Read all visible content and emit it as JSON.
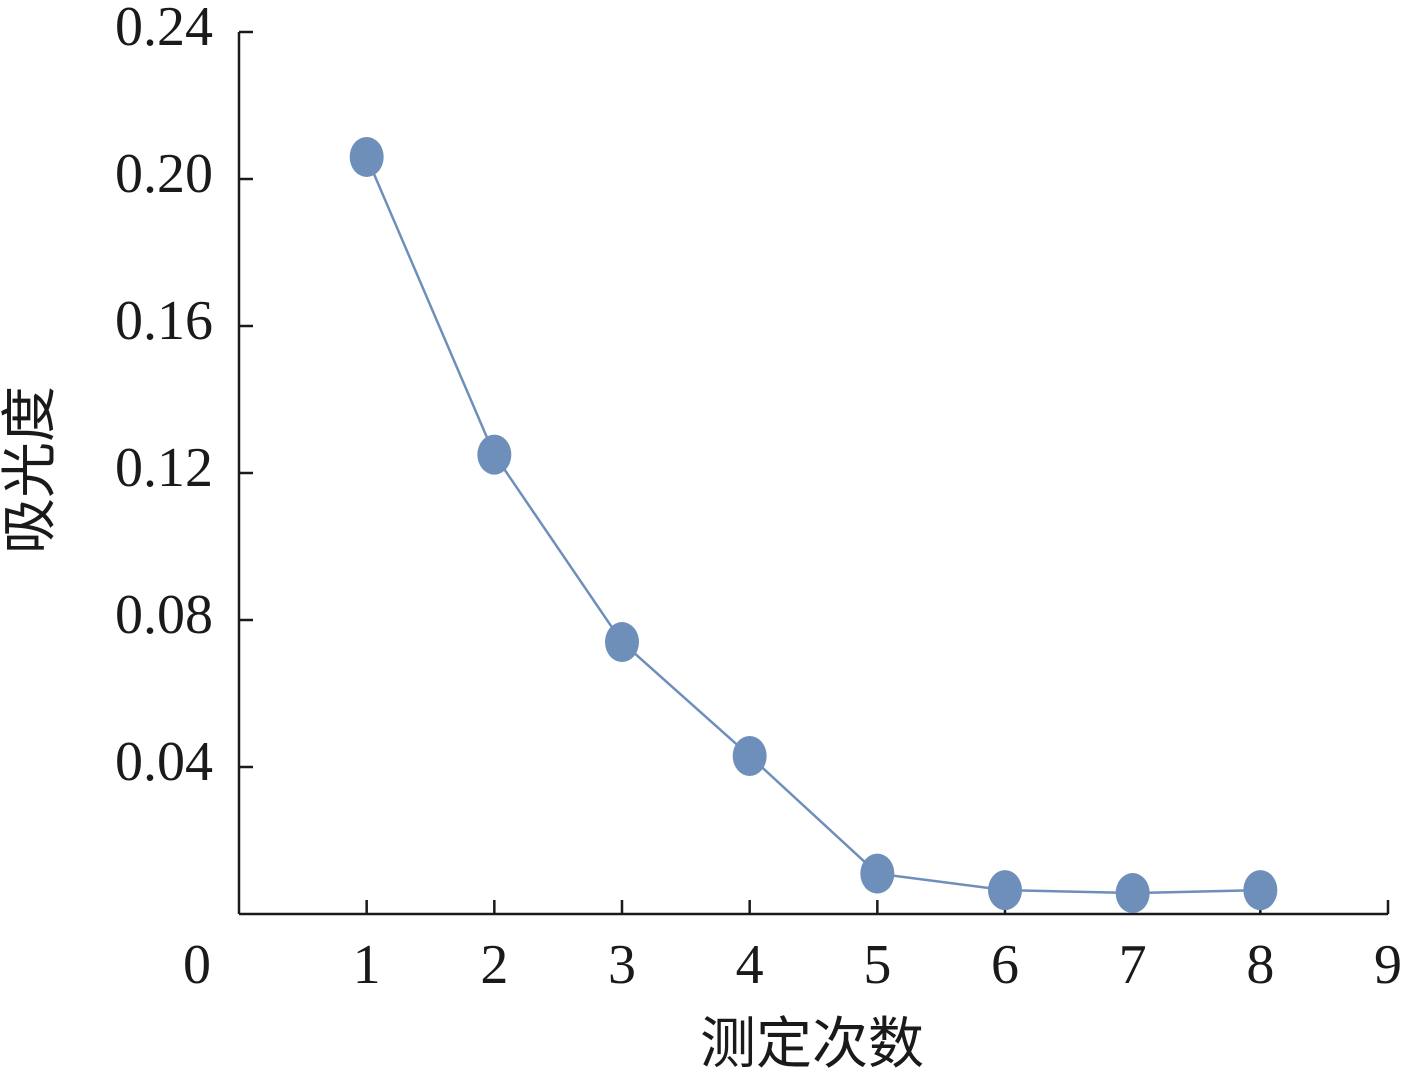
{
  "chart_data": {
    "type": "line",
    "x_label": "测定次数",
    "y_label": "吸光度",
    "x": [
      1,
      2,
      3,
      4,
      5,
      6,
      7,
      8
    ],
    "series": [
      {
        "color": "#6f8fbb",
        "values": [
          0.206,
          0.125,
          0.074,
          0.043,
          0.011,
          0.0065,
          0.0057,
          0.0065
        ]
      }
    ],
    "xlim": [
      0,
      9
    ],
    "xticks": [
      0,
      1,
      2,
      3,
      4,
      5,
      6,
      7,
      8,
      9
    ],
    "ylim": [
      0,
      0.24
    ],
    "yticks": [
      0.04,
      0.08,
      0.12,
      0.16,
      {
        "value": 0.2,
        "label": "0.20"
      },
      0.24
    ]
  }
}
